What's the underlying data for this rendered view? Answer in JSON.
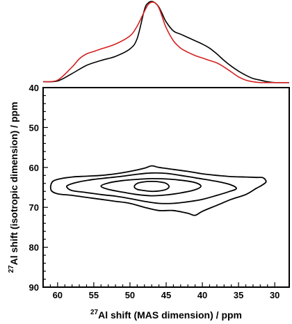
{
  "chart_data": {
    "type": "contour",
    "xlabel": {
      "sup": "27",
      "text": "Al shift (MAS dimension) / ppm"
    },
    "ylabel": {
      "sup": "27",
      "text": "Al shift (isotropic dimension) / ppm"
    },
    "xlim": [
      62,
      28
    ],
    "ylim": [
      40,
      90
    ],
    "x_ticks": [
      60,
      55,
      50,
      45,
      40,
      35,
      30
    ],
    "y_ticks": [
      40,
      50,
      60,
      70,
      80,
      90
    ],
    "x_tick_labels": [
      "60",
      "55",
      "50",
      "45",
      "40",
      "35",
      "30"
    ],
    "y_tick_labels": [
      "40",
      "50",
      "60",
      "70",
      "80",
      "90"
    ],
    "contours": [
      {
        "level": 1,
        "points": [
          [
            60.8,
            63.8
          ],
          [
            60,
            63
          ],
          [
            58,
            62.4
          ],
          [
            56,
            62.2
          ],
          [
            54,
            62
          ],
          [
            52,
            61.6
          ],
          [
            50,
            61
          ],
          [
            48,
            60.2
          ],
          [
            47,
            59.6
          ],
          [
            46,
            60
          ],
          [
            44,
            60.5
          ],
          [
            42,
            61
          ],
          [
            40,
            61.6
          ],
          [
            38,
            62
          ],
          [
            36,
            62.3
          ],
          [
            34,
            62.4
          ],
          [
            32.5,
            62.5
          ],
          [
            31.6,
            62.6
          ],
          [
            31.2,
            63.6
          ],
          [
            31.8,
            64.5
          ],
          [
            32.6,
            65.3
          ],
          [
            34,
            66.8
          ],
          [
            36,
            68
          ],
          [
            38,
            69.5
          ],
          [
            40,
            71
          ],
          [
            41,
            72
          ],
          [
            42,
            71.5
          ],
          [
            44,
            70.8
          ],
          [
            46,
            70.8
          ],
          [
            48,
            70
          ],
          [
            50,
            69
          ],
          [
            52,
            68.5
          ],
          [
            54,
            68
          ],
          [
            56,
            67.5
          ],
          [
            58,
            67
          ],
          [
            60,
            66.6
          ],
          [
            60.9,
            65.7
          ]
        ]
      },
      {
        "level": 2,
        "points": [
          [
            58.5,
            64.4
          ],
          [
            57,
            63.6
          ],
          [
            55,
            63
          ],
          [
            53,
            62.6
          ],
          [
            51,
            62.2
          ],
          [
            49,
            61.7
          ],
          [
            47,
            61.4
          ],
          [
            45,
            61.5
          ],
          [
            43,
            62
          ],
          [
            41,
            62.6
          ],
          [
            38,
            63.5
          ],
          [
            36,
            64.4
          ],
          [
            35.3,
            65.3
          ],
          [
            36.2,
            66
          ],
          [
            38,
            67
          ],
          [
            40,
            68
          ],
          [
            42,
            68.6
          ],
          [
            44,
            69
          ],
          [
            46,
            69
          ],
          [
            48,
            68.5
          ],
          [
            50,
            67.8
          ],
          [
            52,
            67.2
          ],
          [
            54,
            66.8
          ],
          [
            56,
            66.3
          ],
          [
            58,
            65.8
          ],
          [
            58.7,
            65
          ]
        ]
      },
      {
        "level": 3,
        "points": [
          [
            54,
            64.7
          ],
          [
            53,
            63.9
          ],
          [
            51,
            63.3
          ],
          [
            49,
            63
          ],
          [
            47,
            62.8
          ],
          [
            45,
            62.9
          ],
          [
            43,
            63.2
          ],
          [
            41,
            63.8
          ],
          [
            40.2,
            64.7
          ],
          [
            41,
            65.6
          ],
          [
            43,
            66.4
          ],
          [
            45,
            66.9
          ],
          [
            47,
            67.1
          ],
          [
            49,
            66.8
          ],
          [
            51,
            66.2
          ],
          [
            53,
            65.5
          ]
        ]
      },
      {
        "level": 4,
        "points": [
          [
            49.4,
            64.8
          ],
          [
            49,
            64
          ],
          [
            48,
            63.6
          ],
          [
            47,
            63.5
          ],
          [
            46,
            63.6
          ],
          [
            45,
            64
          ],
          [
            44.6,
            64.8
          ],
          [
            45,
            65.5
          ],
          [
            46,
            65.9
          ],
          [
            47,
            66
          ],
          [
            48,
            65.8
          ],
          [
            49,
            65.5
          ]
        ]
      }
    ],
    "projection_top": {
      "series": [
        {
          "name": "",
          "color": "#000000",
          "x": [
            62,
            60,
            58,
            56,
            54,
            52,
            50,
            49,
            48,
            47.5,
            47,
            46.5,
            46,
            45.5,
            45,
            44,
            43,
            42,
            41,
            40,
            39,
            38,
            37,
            36,
            35,
            34,
            33,
            32,
            31,
            30,
            29,
            28
          ],
          "y": [
            0.02,
            0.03,
            0.12,
            0.22,
            0.28,
            0.33,
            0.42,
            0.55,
            0.9,
            0.98,
            1.0,
            0.98,
            0.93,
            0.84,
            0.75,
            0.64,
            0.6,
            0.56,
            0.52,
            0.48,
            0.43,
            0.36,
            0.28,
            0.21,
            0.15,
            0.1,
            0.06,
            0.04,
            0.02,
            0.01,
            0.01,
            0.01
          ]
        },
        {
          "name": "",
          "color": "#d42020",
          "x": [
            62,
            60,
            58,
            57,
            56,
            55,
            54,
            52,
            50,
            49,
            48,
            47.5,
            47,
            46.5,
            46,
            45.5,
            45,
            44,
            43,
            42,
            41,
            40,
            39,
            38,
            37,
            36,
            35,
            34,
            33,
            32,
            31,
            30,
            29,
            28
          ],
          "y": [
            0.02,
            0.04,
            0.2,
            0.3,
            0.36,
            0.39,
            0.42,
            0.48,
            0.58,
            0.7,
            0.88,
            0.96,
            0.99,
            0.98,
            0.92,
            0.8,
            0.68,
            0.52,
            0.43,
            0.38,
            0.34,
            0.31,
            0.28,
            0.25,
            0.2,
            0.14,
            0.08,
            0.04,
            0.02,
            0.01,
            0.01,
            0.01,
            0.01,
            0.01
          ]
        }
      ]
    }
  }
}
